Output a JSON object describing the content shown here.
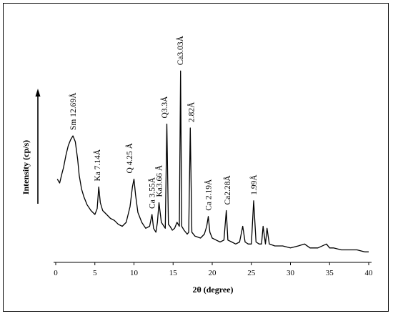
{
  "chart_data": {
    "type": "line",
    "title": "",
    "xlabel": "2θ (degree)",
    "ylabel": "Intensity (cp/s)",
    "xlim": [
      0,
      40
    ],
    "x_ticks": [
      "0",
      "5",
      "10",
      "15",
      "20",
      "25",
      "30",
      "35",
      "40"
    ],
    "y_ticks": [],
    "grid": false,
    "series": [
      {
        "x": [
          0.2,
          0.5,
          0.8,
          1.0,
          1.3,
          1.6,
          1.9,
          2.2,
          2.5,
          2.8,
          3.0,
          3.3,
          3.6,
          4.0,
          4.5,
          5.0,
          5.3,
          5.5,
          5.7,
          6.0,
          6.5,
          7.0,
          7.5,
          8.0,
          8.5,
          9.0,
          9.5,
          9.8,
          10.0,
          10.2,
          10.5,
          11.0,
          11.5,
          12.0,
          12.3,
          12.5,
          12.8,
          13.0,
          13.2,
          13.5,
          14.0,
          14.2,
          14.4,
          14.6,
          14.9,
          15.2,
          15.5,
          15.8,
          15.95,
          16.1,
          16.4,
          16.8,
          17.0,
          17.2,
          17.4,
          17.8,
          18.5,
          19.0,
          19.3,
          19.5,
          19.7,
          20.0,
          20.5,
          21.0,
          21.5,
          21.8,
          22.0,
          22.5,
          23.0,
          23.5,
          23.9,
          24.2,
          24.6,
          25.0,
          25.3,
          25.6,
          26.0,
          26.3,
          26.5,
          26.8,
          27.0,
          27.3,
          28.0,
          29.0,
          30.0,
          31.0,
          31.8,
          32.5,
          33.5,
          34.6,
          35.0,
          35.5,
          36.5,
          37.5,
          38.5,
          39.5,
          40.0
        ],
        "y": [
          38,
          36,
          41,
          44,
          50,
          55,
          58,
          60,
          57,
          48,
          40,
          33,
          29,
          25,
          22,
          20,
          23,
          34,
          26,
          22,
          20,
          18,
          17,
          15,
          14,
          16,
          24,
          34,
          38,
          30,
          21,
          16,
          13,
          14,
          20,
          13,
          11,
          16,
          26,
          16,
          13,
          66,
          15,
          14,
          12,
          13,
          16,
          14,
          93,
          14,
          12,
          10,
          11,
          64,
          11,
          9,
          8,
          10,
          14,
          19,
          11,
          8,
          7,
          6,
          7,
          22,
          7,
          6,
          5,
          6,
          14,
          6,
          5,
          5,
          27,
          6,
          5,
          5,
          14,
          5,
          13,
          5,
          4,
          4,
          3,
          4,
          5,
          3,
          3,
          5,
          3,
          3,
          2,
          2,
          2,
          1,
          1
        ]
      }
    ],
    "annotations": [
      {
        "text": "Sm 12.69Å",
        "x": 2.2
      },
      {
        "text": "Ka 7.14Å",
        "x": 5.3
      },
      {
        "text": "Q 4.25 Å",
        "x": 9.4
      },
      {
        "text": "Ca 3.55Å",
        "x": 12.3
      },
      {
        "text": "Ka3.66 Å",
        "x": 13.2
      },
      {
        "text": "Q3.3Å",
        "x": 13.9
      },
      {
        "text": "Ca3.03Å",
        "x": 15.9
      },
      {
        "text": "2.82Å",
        "x": 17.3
      },
      {
        "text": "Ca 2.19Å",
        "x": 19.5
      },
      {
        "text": "Ca2.28Å",
        "x": 21.9
      },
      {
        "text": "1.99Å",
        "x": 25.3
      }
    ]
  }
}
